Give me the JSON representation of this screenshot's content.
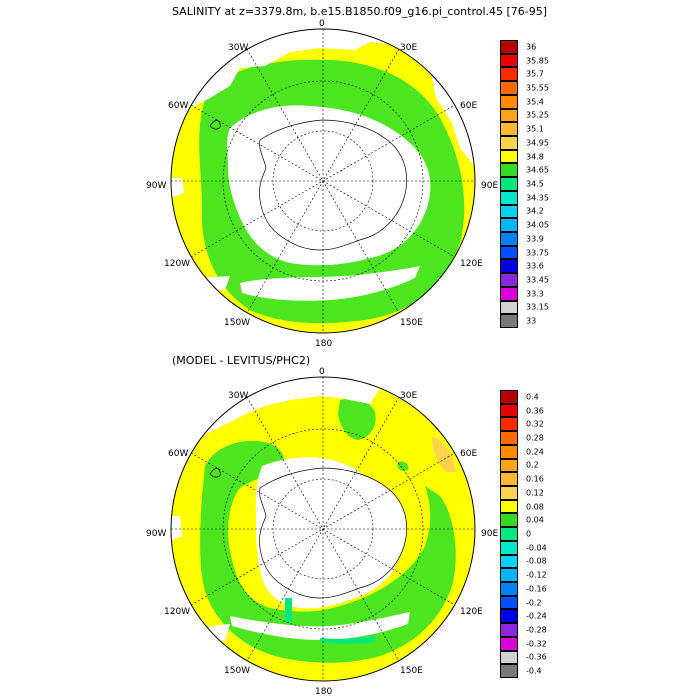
{
  "top_panel": {
    "title": "SALINITY at z=3379.8m, b.e15.B1850.f09_g16.pi_control.45 [76-95]",
    "lon_labels": {
      "top": "0",
      "tr": "30E",
      "r1": "60E",
      "r": "90E",
      "r2": "120E",
      "br": "150E",
      "bottom": "180",
      "bl": "150W",
      "l2": "120W",
      "l": "90W",
      "l1": "60W",
      "tl": "30W"
    },
    "colorbar": {
      "labels": [
        "36",
        "35.85",
        "35.7",
        "35.55",
        "35.4",
        "35.25",
        "35.1",
        "34.95",
        "34.8",
        "34.65",
        "34.5",
        "34.35",
        "34.2",
        "34.05",
        "33.9",
        "33.75",
        "33.6",
        "33.45",
        "33.3",
        "33.15",
        "33"
      ],
      "colors": [
        "#b40000",
        "#e60000",
        "#ff2a00",
        "#ff6a00",
        "#ff8c00",
        "#ffa31a",
        "#ffb833",
        "#ffd24d",
        "#ffff00",
        "#32dc1e",
        "#00e680",
        "#00e6c8",
        "#00d2f0",
        "#00b4ff",
        "#0082ff",
        "#0050ff",
        "#0000e6",
        "#8c28dc",
        "#dc00dc",
        "#d2d2d2",
        "#787878"
      ]
    },
    "colors": {
      "main_fill": "#4ce51f",
      "high_fill": "#ffff00",
      "land": "#ffffff"
    }
  },
  "bottom_panel": {
    "title": "(MODEL - LEVITUS/PHC2)",
    "lon_labels": {
      "top": "0",
      "tr": "30E",
      "r1": "60E",
      "r": "90E",
      "r2": "120E",
      "br": "150E",
      "bottom": "180",
      "bl": "150W",
      "l2": "120W",
      "l": "90W",
      "l1": "60W",
      "tl": "30W"
    },
    "colorbar": {
      "labels": [
        "0.4",
        "0.36",
        "0.32",
        "0.28",
        "0.24",
        "0.2",
        "0.16",
        "0.12",
        "0.08",
        "0.04",
        "0",
        "-0.04",
        "-0.08",
        "-0.12",
        "-0.16",
        "-0.2",
        "-0.24",
        "-0.28",
        "-0.32",
        "-0.36",
        "-0.4"
      ],
      "colors": [
        "#b40000",
        "#e60000",
        "#ff2a00",
        "#ff6a00",
        "#ff8c00",
        "#ffa31a",
        "#ffb833",
        "#ffd24d",
        "#ffff00",
        "#32dc1e",
        "#00e680",
        "#00e6c8",
        "#00d2f0",
        "#00b4ff",
        "#0082ff",
        "#0050ff",
        "#0000e6",
        "#8c28dc",
        "#dc00dc",
        "#d2d2d2",
        "#787878"
      ]
    },
    "colors": {
      "main_fill": "#4ce51f",
      "high_fill": "#ffff00",
      "land": "#ffffff"
    }
  }
}
